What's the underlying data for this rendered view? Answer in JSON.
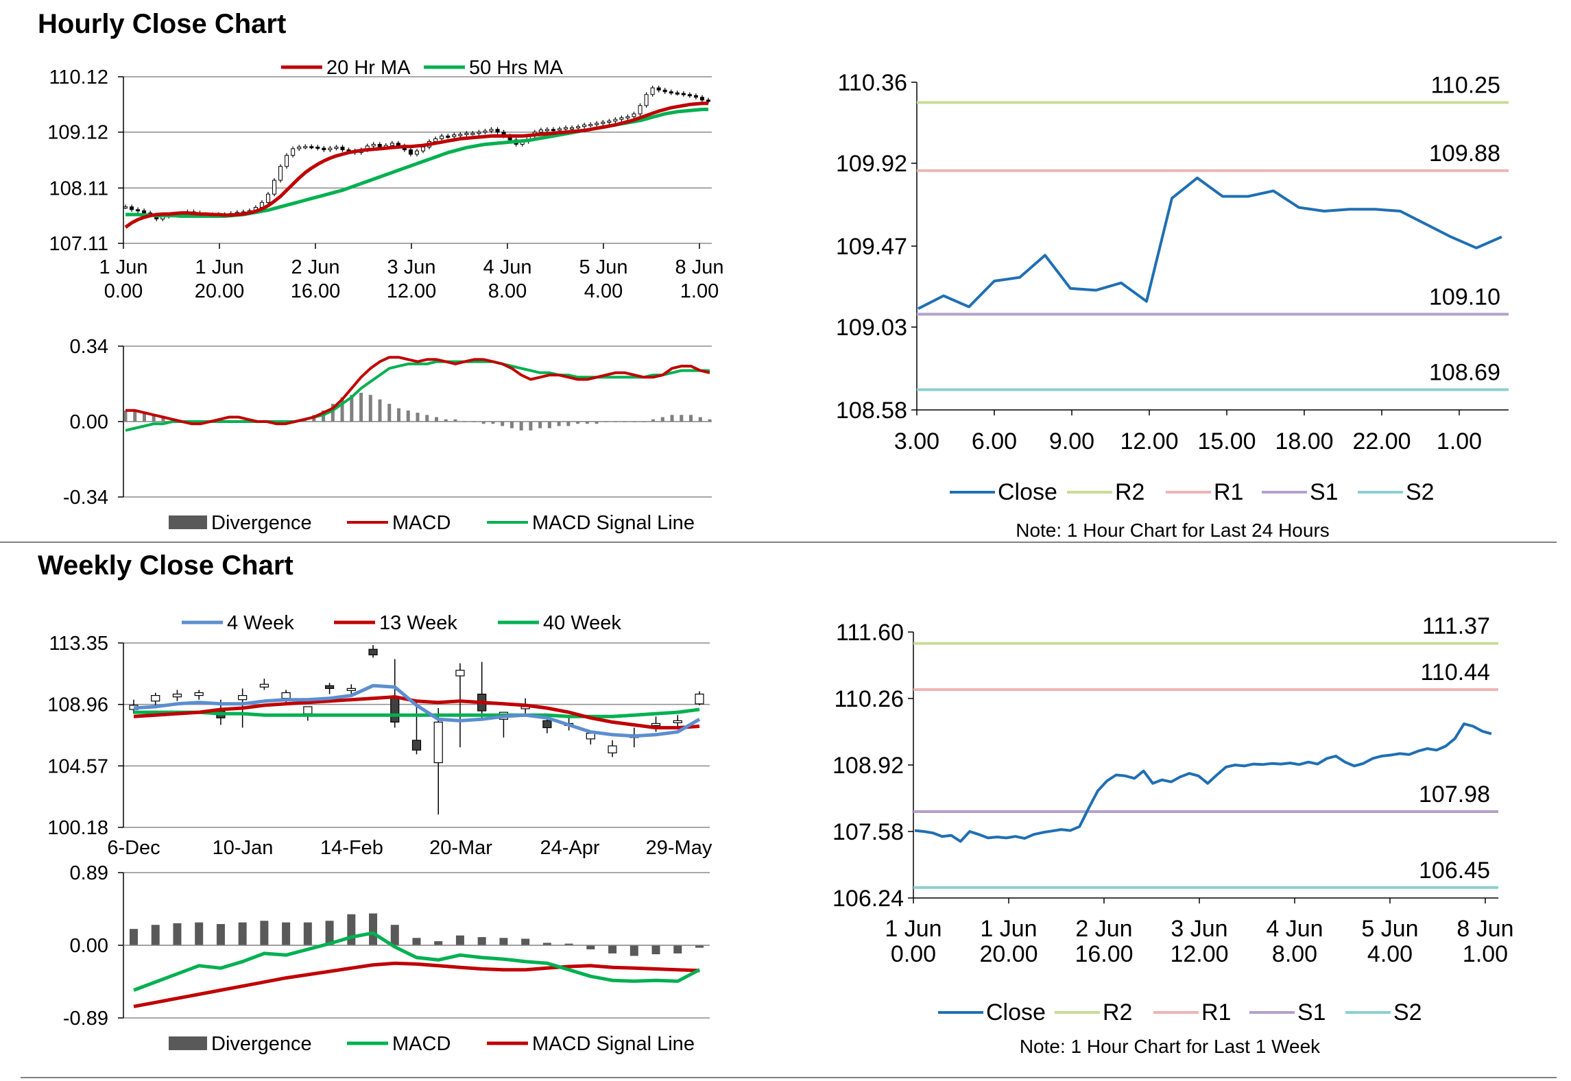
{
  "sections": {
    "hourly_title": "Hourly Close Chart",
    "weekly_title": "Weekly Close Chart"
  },
  "colors": {
    "close": "#1f6fb4",
    "r2": "#c8dc96",
    "r1": "#efb4b4",
    "s1": "#b4a0cc",
    "s2": "#8ccfd0",
    "ma20": "#c00000",
    "ma50": "#00b050",
    "ma4w": "#5b8ed0",
    "ma13w": "#c00000",
    "ma40w": "#00b050",
    "divergence": "#595959",
    "grid": "#8c8c8c",
    "separator": "#808080"
  },
  "chart_data": [
    {
      "id": "hourly_candles",
      "type": "candlestick",
      "y_ticks": [
        "110.12",
        "109.12",
        "108.11",
        "107.11"
      ],
      "ylim": [
        107.11,
        110.12
      ],
      "x_ticks": [
        [
          "1 Jun",
          "0.00"
        ],
        [
          "1 Jun",
          "20.00"
        ],
        [
          "2 Jun",
          "16.00"
        ],
        [
          "3 Jun",
          "12.00"
        ],
        [
          "4 Jun",
          "8.00"
        ],
        [
          "5 Jun",
          "4.00"
        ],
        [
          "8 Jun",
          "1.00"
        ]
      ],
      "legend": [
        "20 Hr MA",
        "50 Hrs MA"
      ],
      "close": [
        107.77,
        107.72,
        107.7,
        107.66,
        107.62,
        107.55,
        107.6,
        107.62,
        107.62,
        107.64,
        107.68,
        107.66,
        107.63,
        107.63,
        107.63,
        107.62,
        107.63,
        107.65,
        107.67,
        107.68,
        107.7,
        107.76,
        107.85,
        108.0,
        108.25,
        108.5,
        108.7,
        108.82,
        108.85,
        108.86,
        108.85,
        108.83,
        108.8,
        108.83,
        108.85,
        108.8,
        108.78,
        108.75,
        108.8,
        108.87,
        108.9,
        108.85,
        108.88,
        108.92,
        108.87,
        108.8,
        108.72,
        108.78,
        108.85,
        108.95,
        109.0,
        109.05,
        109.04,
        109.07,
        109.08,
        109.1,
        109.1,
        109.12,
        109.14,
        109.17,
        109.12,
        109.05,
        108.98,
        108.9,
        108.95,
        109.05,
        109.12,
        109.16,
        109.17,
        109.16,
        109.18,
        109.2,
        109.2,
        109.22,
        109.25,
        109.26,
        109.28,
        109.3,
        109.32,
        109.35,
        109.38,
        109.4,
        109.45,
        109.6,
        109.8,
        109.92,
        109.88,
        109.85,
        109.83,
        109.82,
        109.8,
        109.78,
        109.75,
        109.7,
        109.68
      ],
      "ma20": [
        107.4,
        107.48,
        107.54,
        107.58,
        107.61,
        107.63,
        107.64,
        107.64,
        107.65,
        107.66,
        107.66,
        107.65,
        107.64,
        107.64,
        107.63,
        107.63,
        107.62,
        107.62,
        107.63,
        107.64,
        107.66,
        107.69,
        107.73,
        107.79,
        107.87,
        107.96,
        108.07,
        108.18,
        108.29,
        108.39,
        108.47,
        108.54,
        108.6,
        108.65,
        108.69,
        108.72,
        108.75,
        108.77,
        108.79,
        108.8,
        108.81,
        108.82,
        108.83,
        108.84,
        108.85,
        108.86,
        108.86,
        108.87,
        108.88,
        108.9,
        108.92,
        108.94,
        108.96,
        108.98,
        109.0,
        109.01,
        109.02,
        109.03,
        109.04,
        109.05,
        109.05,
        109.05,
        109.05,
        109.05,
        109.05,
        109.06,
        109.07,
        109.08,
        109.09,
        109.1,
        109.11,
        109.12,
        109.13,
        109.14,
        109.15,
        109.17,
        109.19,
        109.21,
        109.23,
        109.25,
        109.28,
        109.31,
        109.34,
        109.38,
        109.42,
        109.46,
        109.5,
        109.53,
        109.56,
        109.58,
        109.6,
        109.62,
        109.63,
        109.64,
        109.64
      ],
      "ma50": [
        107.63,
        107.63,
        107.63,
        107.62,
        107.62,
        107.61,
        107.61,
        107.61,
        107.61,
        107.6,
        107.6,
        107.6,
        107.6,
        107.6,
        107.6,
        107.6,
        107.6,
        107.61,
        107.62,
        107.63,
        107.65,
        107.67,
        107.69,
        107.71,
        107.74,
        107.77,
        107.8,
        107.83,
        107.86,
        107.89,
        107.92,
        107.95,
        107.98,
        108.01,
        108.04,
        108.07,
        108.11,
        108.15,
        108.19,
        108.23,
        108.27,
        108.31,
        108.35,
        108.39,
        108.43,
        108.47,
        108.51,
        108.55,
        108.59,
        108.63,
        108.67,
        108.71,
        108.75,
        108.78,
        108.81,
        108.84,
        108.86,
        108.88,
        108.9,
        108.91,
        108.92,
        108.93,
        108.94,
        108.95,
        108.96,
        108.97,
        108.99,
        109.01,
        109.03,
        109.05,
        109.07,
        109.09,
        109.11,
        109.13,
        109.15,
        109.17,
        109.19,
        109.21,
        109.23,
        109.25,
        109.27,
        109.29,
        109.31,
        109.33,
        109.36,
        109.39,
        109.42,
        109.45,
        109.47,
        109.49,
        109.5,
        109.51,
        109.52,
        109.53,
        109.53
      ]
    },
    {
      "id": "hourly_macd",
      "type": "macd",
      "y_ticks": [
        "0.34",
        "0.00",
        "-0.34"
      ],
      "ylim": [
        -0.34,
        0.34
      ],
      "legend": [
        "Divergence",
        "MACD",
        "MACD Signal Line"
      ],
      "macd": [
        0.05,
        0.05,
        0.04,
        0.03,
        0.02,
        0.01,
        0.0,
        -0.01,
        -0.01,
        0.0,
        0.01,
        0.02,
        0.02,
        0.01,
        0.0,
        0.0,
        -0.01,
        -0.01,
        0.0,
        0.01,
        0.02,
        0.04,
        0.06,
        0.1,
        0.15,
        0.2,
        0.24,
        0.27,
        0.29,
        0.29,
        0.28,
        0.27,
        0.28,
        0.28,
        0.27,
        0.26,
        0.27,
        0.28,
        0.28,
        0.27,
        0.26,
        0.24,
        0.21,
        0.19,
        0.2,
        0.21,
        0.21,
        0.2,
        0.19,
        0.19,
        0.2,
        0.21,
        0.22,
        0.22,
        0.21,
        0.2,
        0.2,
        0.21,
        0.24,
        0.25,
        0.25,
        0.23,
        0.22
      ],
      "signal": [
        -0.04,
        -0.03,
        -0.02,
        -0.01,
        -0.01,
        0.0,
        0.0,
        0.0,
        0.0,
        0.0,
        0.0,
        0.0,
        0.0,
        0.0,
        0.0,
        0.0,
        0.0,
        0.0,
        0.0,
        0.01,
        0.02,
        0.03,
        0.05,
        0.08,
        0.11,
        0.15,
        0.18,
        0.21,
        0.24,
        0.25,
        0.26,
        0.26,
        0.26,
        0.27,
        0.27,
        0.27,
        0.27,
        0.27,
        0.27,
        0.27,
        0.26,
        0.25,
        0.24,
        0.23,
        0.22,
        0.22,
        0.21,
        0.21,
        0.2,
        0.2,
        0.2,
        0.2,
        0.2,
        0.2,
        0.2,
        0.2,
        0.21,
        0.21,
        0.22,
        0.23,
        0.23,
        0.23,
        0.23
      ],
      "divergence": [
        0.05,
        0.05,
        0.04,
        0.03,
        0.02,
        0.01,
        0.0,
        0.0,
        0.0,
        0.0,
        0.0,
        0.0,
        0.0,
        0.0,
        0.0,
        0.0,
        0.0,
        0.0,
        0.0,
        0.01,
        0.03,
        0.05,
        0.08,
        0.11,
        0.12,
        0.13,
        0.12,
        0.1,
        0.08,
        0.06,
        0.05,
        0.04,
        0.03,
        0.02,
        0.01,
        0.01,
        0.0,
        0.0,
        -0.01,
        -0.01,
        -0.02,
        -0.03,
        -0.04,
        -0.04,
        -0.03,
        -0.03,
        -0.02,
        -0.02,
        -0.01,
        -0.01,
        -0.01,
        0.0,
        0.0,
        0.0,
        0.0,
        0.0,
        0.01,
        0.02,
        0.03,
        0.03,
        0.03,
        0.02,
        0.01
      ]
    },
    {
      "id": "hourly_pivot",
      "type": "line",
      "y_ticks": [
        "110.36",
        "109.92",
        "109.47",
        "109.03",
        "108.58"
      ],
      "ylim": [
        108.58,
        110.36
      ],
      "x_ticks": [
        "3.00",
        "6.00",
        "9.00",
        "12.00",
        "15.00",
        "18.00",
        "22.00",
        "1.00"
      ],
      "close": [
        109.13,
        109.2,
        109.14,
        109.28,
        109.3,
        109.42,
        109.24,
        109.23,
        109.27,
        109.17,
        109.73,
        109.84,
        109.74,
        109.74,
        109.77,
        109.68,
        109.66,
        109.67,
        109.67,
        109.66,
        109.59,
        109.52,
        109.46,
        109.52
      ],
      "levels": [
        {
          "key": "R2",
          "value": 110.25,
          "label": "110.25"
        },
        {
          "key": "R1",
          "value": 109.88,
          "label": "109.88"
        },
        {
          "key": "S1",
          "value": 109.1,
          "label": "109.10"
        },
        {
          "key": "S2",
          "value": 108.69,
          "label": "108.69"
        }
      ],
      "legend": [
        "Close",
        "R2",
        "R1",
        "S1",
        "S2"
      ],
      "note": "Note: 1 Hour Chart for Last 24 Hours"
    },
    {
      "id": "weekly_candles",
      "type": "candlestick",
      "y_ticks": [
        "113.35",
        "108.96",
        "104.57",
        "100.18"
      ],
      "ylim": [
        100.18,
        113.35
      ],
      "x_ticks": [
        "6-Dec",
        "10-Jan",
        "14-Feb",
        "20-Mar",
        "24-Apr",
        "29-May"
      ],
      "legend": [
        "4 Week",
        "13 Week",
        "40 Week"
      ],
      "candles": [
        {
          "o": 108.6,
          "h": 109.3,
          "l": 108.3,
          "c": 108.9
        },
        {
          "o": 109.2,
          "h": 109.8,
          "l": 108.8,
          "c": 109.6
        },
        {
          "o": 109.5,
          "h": 110.0,
          "l": 109.2,
          "c": 109.7
        },
        {
          "o": 109.6,
          "h": 110.0,
          "l": 109.3,
          "c": 109.8
        },
        {
          "o": 108.5,
          "h": 109.3,
          "l": 107.5,
          "c": 108.0
        },
        {
          "o": 109.3,
          "h": 110.1,
          "l": 107.3,
          "c": 109.6
        },
        {
          "o": 110.2,
          "h": 110.8,
          "l": 110.0,
          "c": 110.4
        },
        {
          "o": 109.4,
          "h": 110.0,
          "l": 109.0,
          "c": 109.8
        },
        {
          "o": 108.3,
          "h": 108.8,
          "l": 107.8,
          "c": 108.8
        },
        {
          "o": 110.3,
          "h": 110.5,
          "l": 109.7,
          "c": 110.1
        },
        {
          "o": 110.0,
          "h": 110.4,
          "l": 109.6,
          "c": 110.1
        },
        {
          "o": 112.9,
          "h": 113.2,
          "l": 112.3,
          "c": 112.5
        },
        {
          "o": 109.5,
          "h": 112.2,
          "l": 107.3,
          "c": 107.7
        },
        {
          "o": 106.4,
          "h": 109.3,
          "l": 105.4,
          "c": 105.7
        },
        {
          "o": 104.8,
          "h": 108.7,
          "l": 101.1,
          "c": 107.7
        },
        {
          "o": 111.0,
          "h": 111.9,
          "l": 105.9,
          "c": 111.4
        },
        {
          "o": 109.7,
          "h": 112.0,
          "l": 107.8,
          "c": 108.5
        },
        {
          "o": 107.9,
          "h": 108.4,
          "l": 106.6,
          "c": 108.4
        },
        {
          "o": 108.8,
          "h": 109.4,
          "l": 108.3,
          "c": 108.8
        },
        {
          "o": 107.8,
          "h": 108.3,
          "l": 106.9,
          "c": 107.3
        },
        {
          "o": 107.5,
          "h": 108.0,
          "l": 107.1,
          "c": 107.6
        },
        {
          "o": 106.5,
          "h": 107.0,
          "l": 106.1,
          "c": 106.9
        },
        {
          "o": 105.5,
          "h": 106.4,
          "l": 105.2,
          "c": 106.0
        },
        {
          "o": 106.6,
          "h": 107.3,
          "l": 105.9,
          "c": 106.8
        },
        {
          "o": 107.6,
          "h": 108.1,
          "l": 107.0,
          "c": 107.6
        },
        {
          "o": 107.8,
          "h": 108.2,
          "l": 107.3,
          "c": 107.8
        },
        {
          "o": 109.0,
          "h": 109.9,
          "l": 108.9,
          "c": 109.7
        }
      ],
      "ma4w": [
        108.7,
        108.8,
        109.0,
        109.1,
        109.0,
        109.0,
        109.2,
        109.3,
        109.3,
        109.4,
        109.6,
        110.3,
        110.2,
        108.9,
        107.9,
        107.8,
        107.9,
        108.1,
        108.2,
        108.0,
        107.5,
        107.0,
        106.8,
        106.7,
        106.8,
        107.0,
        107.9
      ],
      "ma13w": [
        108.1,
        108.2,
        108.3,
        108.4,
        108.6,
        108.7,
        108.9,
        109.0,
        109.1,
        109.2,
        109.3,
        109.4,
        109.5,
        109.2,
        109.1,
        109.2,
        109.1,
        109.0,
        108.9,
        108.7,
        108.4,
        108.0,
        107.7,
        107.5,
        107.3,
        107.3,
        107.4
      ],
      "ma40w": [
        108.4,
        108.4,
        108.4,
        108.4,
        108.3,
        108.3,
        108.2,
        108.2,
        108.2,
        108.2,
        108.2,
        108.2,
        108.2,
        108.2,
        108.2,
        108.2,
        108.2,
        108.2,
        108.2,
        108.2,
        108.1,
        108.1,
        108.1,
        108.2,
        108.3,
        108.4,
        108.6
      ]
    },
    {
      "id": "weekly_macd",
      "type": "macd",
      "y_ticks": [
        "0.89",
        "0.00",
        "-0.89"
      ],
      "ylim": [
        -0.89,
        0.89
      ],
      "legend": [
        "Divergence",
        "MACD",
        "MACD Signal Line"
      ],
      "macd": [
        -0.55,
        -0.45,
        -0.35,
        -0.25,
        -0.28,
        -0.2,
        -0.1,
        -0.12,
        -0.05,
        0.02,
        0.1,
        0.15,
        -0.02,
        -0.15,
        -0.18,
        -0.12,
        -0.15,
        -0.17,
        -0.2,
        -0.22,
        -0.3,
        -0.38,
        -0.43,
        -0.44,
        -0.43,
        -0.44,
        -0.3
      ],
      "signal": [
        -0.75,
        -0.7,
        -0.65,
        -0.6,
        -0.55,
        -0.5,
        -0.45,
        -0.4,
        -0.36,
        -0.32,
        -0.28,
        -0.24,
        -0.22,
        -0.23,
        -0.25,
        -0.27,
        -0.29,
        -0.3,
        -0.3,
        -0.28,
        -0.26,
        -0.25,
        -0.27,
        -0.28,
        -0.29,
        -0.3,
        -0.31
      ],
      "divergence": [
        0.2,
        0.25,
        0.27,
        0.28,
        0.26,
        0.28,
        0.3,
        0.28,
        0.28,
        0.3,
        0.38,
        0.39,
        0.25,
        0.09,
        0.05,
        0.12,
        0.1,
        0.09,
        0.08,
        0.03,
        0.02,
        -0.05,
        -0.1,
        -0.13,
        -0.11,
        -0.1,
        -0.03
      ]
    },
    {
      "id": "weekly_pivot",
      "type": "line",
      "y_ticks": [
        "111.60",
        "110.26",
        "108.92",
        "107.58",
        "106.24"
      ],
      "ylim": [
        106.24,
        111.6
      ],
      "x_ticks": [
        [
          "1 Jun",
          "0.00"
        ],
        [
          "1 Jun",
          "20.00"
        ],
        [
          "2 Jun",
          "16.00"
        ],
        [
          "3 Jun",
          "12.00"
        ],
        [
          "4 Jun",
          "8.00"
        ],
        [
          "5 Jun",
          "4.00"
        ],
        [
          "8 Jun",
          "1.00"
        ]
      ],
      "close": [
        107.6,
        107.58,
        107.55,
        107.48,
        107.5,
        107.38,
        107.58,
        107.52,
        107.45,
        107.47,
        107.45,
        107.48,
        107.44,
        107.52,
        107.56,
        107.59,
        107.62,
        107.6,
        107.68,
        108.05,
        108.4,
        108.6,
        108.72,
        108.7,
        108.65,
        108.8,
        108.55,
        108.62,
        108.58,
        108.68,
        108.75,
        108.7,
        108.55,
        108.72,
        108.88,
        108.92,
        108.9,
        108.94,
        108.93,
        108.95,
        108.94,
        108.96,
        108.93,
        108.98,
        108.94,
        109.05,
        109.1,
        108.98,
        108.9,
        108.95,
        109.05,
        109.1,
        109.12,
        109.15,
        109.13,
        109.2,
        109.25,
        109.22,
        109.3,
        109.45,
        109.75,
        109.7,
        109.6,
        109.55
      ],
      "levels": [
        {
          "key": "R2",
          "value": 111.37,
          "label": "111.37"
        },
        {
          "key": "R1",
          "value": 110.44,
          "label": "110.44"
        },
        {
          "key": "S1",
          "value": 107.98,
          "label": "107.98"
        },
        {
          "key": "S2",
          "value": 106.45,
          "label": "106.45"
        }
      ],
      "legend": [
        "Close",
        "R2",
        "R1",
        "S1",
        "S2"
      ],
      "note": "Note: 1 Hour Chart for Last 1 Week"
    }
  ]
}
